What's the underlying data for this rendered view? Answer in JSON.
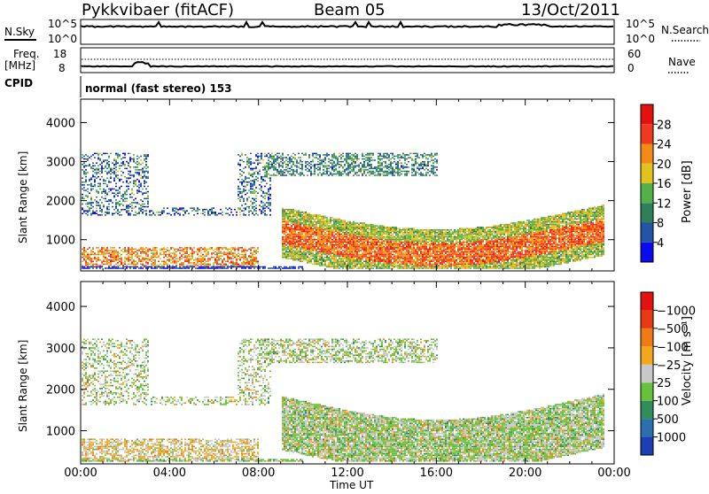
{
  "header": {
    "title": "Pykkvibaer (fitACF)",
    "beam": "Beam 05",
    "date": "13/Oct/2011"
  },
  "panels": {
    "nsky_label": "N.Sky",
    "nsky_ticks": [
      "10^5",
      "10^0"
    ],
    "nsearch_label": "N.Search",
    "nsearch_ticks": [
      "10^5",
      "10^0"
    ],
    "freq_label_1": "Freq.",
    "freq_label_2": "[MHz]",
    "freq_ticks": [
      "18",
      "8"
    ],
    "nave_label": "Nave",
    "nave_ticks": [
      "60",
      "0"
    ],
    "cpid_label": "CPID",
    "cpid_text": "normal (fast stereo) 153"
  },
  "chart_data": [
    {
      "type": "heatmap",
      "name": "power-panel",
      "ylabel": "Slant Range [km]",
      "yticks": [
        "1000",
        "2000",
        "3000",
        "4000"
      ],
      "ylim": [
        200,
        4600
      ],
      "xlim": [
        0,
        24
      ],
      "colorbar": {
        "title": "Power [dB]",
        "ticks": [
          "4",
          "8",
          "12",
          "16",
          "20",
          "24",
          "28"
        ],
        "colors": [
          "#0b0bf0",
          "#2255a8",
          "#2f7f5a",
          "#54b049",
          "#e2c21e",
          "#f58a16",
          "#ee3a1e",
          "#e4120f"
        ]
      }
    },
    {
      "type": "heatmap",
      "name": "velocity-panel",
      "ylabel": "Slant Range [km]",
      "yticks": [
        "1000",
        "2000",
        "3000",
        "4000"
      ],
      "ylim": [
        200,
        4600
      ],
      "xlim": [
        0,
        24
      ],
      "xticks": [
        "00:00",
        "04:00",
        "08:00",
        "12:00",
        "16:00",
        "20:00",
        "00:00"
      ],
      "xlabel": "Time UT",
      "colorbar": {
        "title": "Velocity [m s⁻¹]",
        "ticks": [
          "1000",
          "500",
          "100",
          "25",
          "−25",
          "−100",
          "−500",
          "−1000"
        ],
        "colors": [
          "#1c3fb5",
          "#2b6fb0",
          "#2f8e5a",
          "#66c23a",
          "#c8c8c8",
          "#f4a61c",
          "#f07a14",
          "#e73a14",
          "#e2120f"
        ]
      }
    }
  ]
}
